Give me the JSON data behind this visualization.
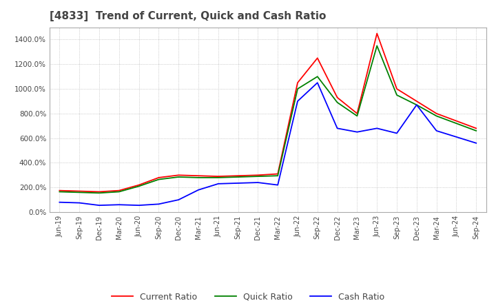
{
  "title": "[4833]  Trend of Current, Quick and Cash Ratio",
  "x_labels": [
    "Jun-19",
    "Sep-19",
    "Dec-19",
    "Mar-20",
    "Jun-20",
    "Sep-20",
    "Dec-20",
    "Mar-21",
    "Jun-21",
    "Sep-21",
    "Dec-21",
    "Mar-22",
    "Jun-22",
    "Sep-22",
    "Dec-22",
    "Mar-23",
    "Jun-23",
    "Sep-23",
    "Dec-23",
    "Mar-24",
    "Jun-24",
    "Sep-24"
  ],
  "current_ratio": [
    175,
    170,
    165,
    175,
    220,
    280,
    300,
    295,
    290,
    295,
    300,
    310,
    1050,
    1250,
    930,
    800,
    1450,
    1000,
    900,
    800,
    740,
    680
  ],
  "quick_ratio": [
    165,
    160,
    155,
    165,
    210,
    265,
    285,
    280,
    280,
    285,
    290,
    295,
    1000,
    1100,
    890,
    780,
    1350,
    950,
    870,
    780,
    720,
    660
  ],
  "cash_ratio": [
    80,
    75,
    55,
    60,
    55,
    65,
    100,
    180,
    230,
    235,
    240,
    220,
    900,
    1050,
    680,
    650,
    680,
    640,
    870,
    660,
    610,
    560
  ],
  "current_color": "#ff0000",
  "quick_color": "#008000",
  "cash_color": "#0000ff",
  "ylim": [
    0,
    1500
  ],
  "ytick_values": [
    0,
    200,
    400,
    600,
    800,
    1000,
    1200,
    1400
  ],
  "background_color": "#ffffff",
  "grid_color": "#aaaaaa",
  "title_color": "#444444",
  "line_width": 1.3
}
